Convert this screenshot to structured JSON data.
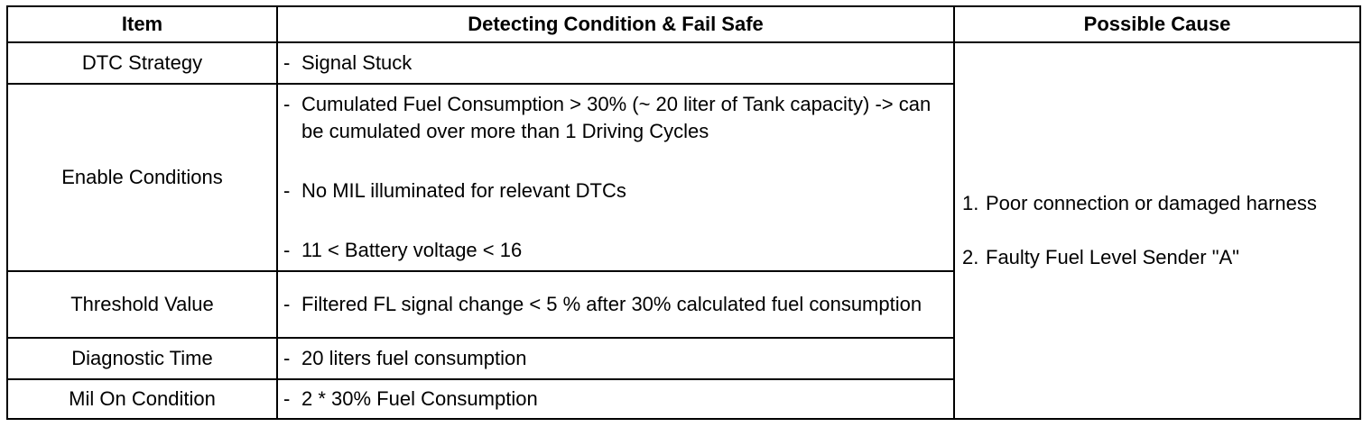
{
  "headers": {
    "item": "Item",
    "condition": "Detecting Condition & Fail Safe",
    "cause": "Possible Cause"
  },
  "rows": [
    {
      "item": "DTC Strategy",
      "conditions": [
        "Signal Stuck"
      ]
    },
    {
      "item": "Enable Conditions",
      "conditions": [
        "Cumulated Fuel Consumption > 30% (~ 20 liter of Tank capacity) -> can be cumulated over more than 1 Driving Cycles",
        "No MIL illuminated for relevant DTCs",
        "11 < Battery voltage < 16"
      ]
    },
    {
      "item": "Threshold Value",
      "conditions": [
        "Filtered FL signal change < 5 % after 30% calculated fuel consumption"
      ]
    },
    {
      "item": "Diagnostic Time",
      "conditions": [
        "20 liters fuel consumption"
      ]
    },
    {
      "item": "Mil On Condition",
      "conditions": [
        "2 * 30% Fuel Consumption"
      ]
    }
  ],
  "causes": [
    {
      "num": "1.",
      "text": "Poor connection or damaged harness"
    },
    {
      "num": "2.",
      "text": "Faulty Fuel Level Sender \"A\""
    }
  ],
  "dash": "-"
}
